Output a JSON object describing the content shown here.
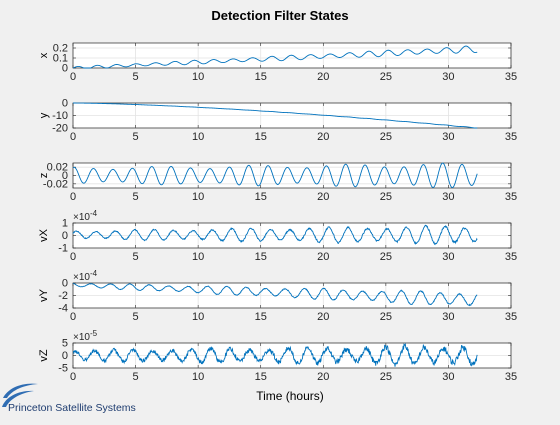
{
  "chart_data": {
    "type": "line",
    "title": "Detection Filter States",
    "xlabel": "Time (hours)",
    "xlim": [
      0,
      35
    ],
    "x_ticks": [
      "0",
      "5",
      "10",
      "15",
      "20",
      "25",
      "30",
      "35"
    ],
    "series_color": "#0072bd",
    "panels": [
      {
        "name": "x",
        "ylabel": "x",
        "ylim": [
          0,
          0.25
        ],
        "exponent": "",
        "y_ticks": [
          {
            "v": 0.2,
            "label": "0.2"
          },
          {
            "v": 0.1,
            "label": "0.1"
          },
          {
            "v": 0,
            "label": "0"
          }
        ],
        "signal": {
          "t_end": 32.3,
          "trend": [
            0,
            0.19
          ],
          "trend_power": 1,
          "amp": [
            0.012,
            0.03
          ],
          "period": 1.55,
          "phase": 0,
          "noise": 0
        }
      },
      {
        "name": "y",
        "ylabel": "y",
        "ylim": [
          -20,
          0
        ],
        "exponent": "",
        "y_ticks": [
          {
            "v": 0,
            "label": "0"
          },
          {
            "v": -10,
            "label": "-10"
          },
          {
            "v": -20,
            "label": "-20"
          }
        ],
        "signal": {
          "t_end": 32.3,
          "trend": [
            0,
            -20
          ],
          "trend_power": 1.5,
          "amp": [
            0,
            0.15
          ],
          "period": 1.55,
          "phase": 0,
          "noise": 0
        }
      },
      {
        "name": "z",
        "ylabel": "z",
        "ylim": [
          -0.03,
          0.03
        ],
        "exponent": "",
        "y_ticks": [
          {
            "v": 0.02,
            "label": "0.02"
          },
          {
            "v": 0,
            "label": "0"
          },
          {
            "v": -0.02,
            "label": "-0.02"
          }
        ],
        "signal": {
          "t_end": 32.3,
          "trend": [
            0,
            0
          ],
          "trend_power": 1,
          "amp": [
            0.017,
            0.026
          ],
          "period": 1.55,
          "phase": 1.2,
          "noise": 0
        }
      },
      {
        "name": "vX",
        "ylabel": "vX",
        "ylim": [
          -1,
          1
        ],
        "exponent": "-4",
        "y_ticks": [
          {
            "v": 1,
            "label": "1"
          },
          {
            "v": 0,
            "label": "0"
          },
          {
            "v": -1,
            "label": "-1"
          }
        ],
        "signal": {
          "t_end": 32.3,
          "trend": [
            0.05,
            0.05
          ],
          "trend_power": 1,
          "amp": [
            0.3,
            0.65
          ],
          "period": 1.55,
          "phase": 0.4,
          "noise": 0.12
        }
      },
      {
        "name": "vY",
        "ylabel": "vY",
        "ylim": [
          -4,
          0
        ],
        "exponent": "-4",
        "y_ticks": [
          {
            "v": 0,
            "label": "0"
          },
          {
            "v": -2,
            "label": "-2"
          },
          {
            "v": -4,
            "label": "-4"
          }
        ],
        "signal": {
          "t_end": 32.3,
          "trend": [
            -0.3,
            -2.7
          ],
          "trend_power": 1,
          "amp": [
            0.3,
            1.05
          ],
          "period": 1.55,
          "phase": 2.0,
          "noise": 0.1
        }
      },
      {
        "name": "vZ",
        "ylabel": "vZ",
        "ylim": [
          -5,
          5
        ],
        "exponent": "-5",
        "y_ticks": [
          {
            "v": 5,
            "label": "5"
          },
          {
            "v": 0,
            "label": "0"
          },
          {
            "v": -5,
            "label": "-5"
          }
        ],
        "signal": {
          "t_end": 32.3,
          "trend": [
            0,
            0
          ],
          "trend_power": 1,
          "amp": [
            1.8,
            3.5
          ],
          "period": 1.55,
          "phase": 0.9,
          "noise": 0.35
        }
      }
    ]
  },
  "brand": {
    "name": "Princeton Satellite Systems",
    "logo_color": "#2f6db3"
  }
}
